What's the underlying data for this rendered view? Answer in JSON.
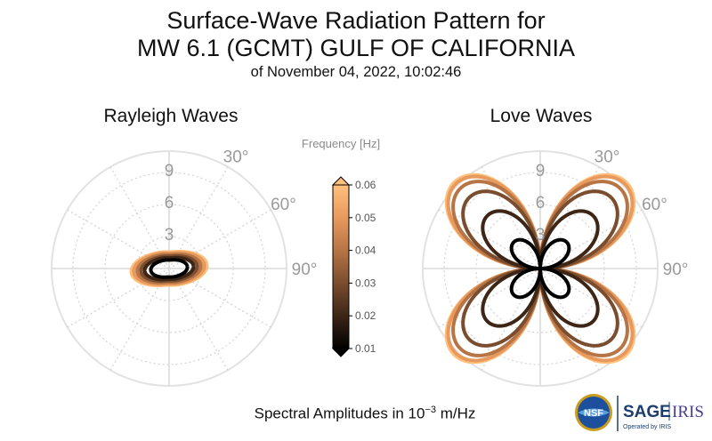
{
  "title": {
    "line1": "Surface-Wave Radiation Pattern for",
    "line2": "MW 6.1 (GCMT) GULF OF CALIFORNIA",
    "line3": "of November 04, 2022, 10:02:46"
  },
  "caption": {
    "prefix": "Spectral Amplitudes in 10",
    "exponent": "−3",
    "suffix": " m/Hz"
  },
  "logos": {
    "nsf": "NSF",
    "sage": "SAGE",
    "iris": "IRIS",
    "operated": "Operated by IRIS"
  },
  "chart_data": [
    {
      "type": "polar",
      "title": "Rayleigh Waves",
      "radial_ticks": [
        "3",
        "6",
        "9"
      ],
      "radial_lim": [
        0,
        11
      ],
      "angle_labels": [
        "30°",
        "60°",
        "90°"
      ],
      "grid": true,
      "series": [
        {
          "frequency": 0.01,
          "a": 1.5,
          "b": 0.8,
          "color": "#000000"
        },
        {
          "frequency": 0.02,
          "a": 2.0,
          "b": 1.0,
          "color": "#3d2616"
        },
        {
          "frequency": 0.03,
          "a": 2.3,
          "b": 1.15,
          "color": "#7a4d2e"
        },
        {
          "frequency": 0.04,
          "a": 2.6,
          "b": 1.3,
          "color": "#b77445"
        },
        {
          "frequency": 0.05,
          "a": 2.9,
          "b": 1.45,
          "color": "#e89a5d"
        },
        {
          "frequency": 0.06,
          "a": 3.1,
          "b": 1.55,
          "color": "#ffc07e"
        }
      ]
    },
    {
      "type": "polar",
      "title": "Love Waves",
      "radial_ticks": [
        "3",
        "6",
        "9"
      ],
      "radial_lim": [
        0,
        11
      ],
      "angle_labels": [
        "30°",
        "60°",
        "90°"
      ],
      "grid": true,
      "series": [
        {
          "frequency": 0.01,
          "amplitude": 3.5,
          "color": "#000000"
        },
        {
          "frequency": 0.02,
          "amplitude": 7.0,
          "color": "#3d2616"
        },
        {
          "frequency": 0.03,
          "amplitude": 9.4,
          "color": "#7a4d2e"
        },
        {
          "frequency": 0.04,
          "amplitude": 10.6,
          "color": "#b77445"
        },
        {
          "frequency": 0.05,
          "amplitude": 11.2,
          "color": "#e89a5d"
        },
        {
          "frequency": 0.06,
          "amplitude": 11.4,
          "color": "#ffc07e"
        }
      ]
    }
  ],
  "colorbar": {
    "label": "Frequency [Hz]",
    "ticks": [
      "0.06",
      "0.05",
      "0.04",
      "0.03",
      "0.02",
      "0.01"
    ],
    "range": [
      0.01,
      0.06
    ],
    "stops": [
      "#000000",
      "#3d2616",
      "#7a4d2e",
      "#b77445",
      "#e89a5d",
      "#ffc07e"
    ]
  }
}
